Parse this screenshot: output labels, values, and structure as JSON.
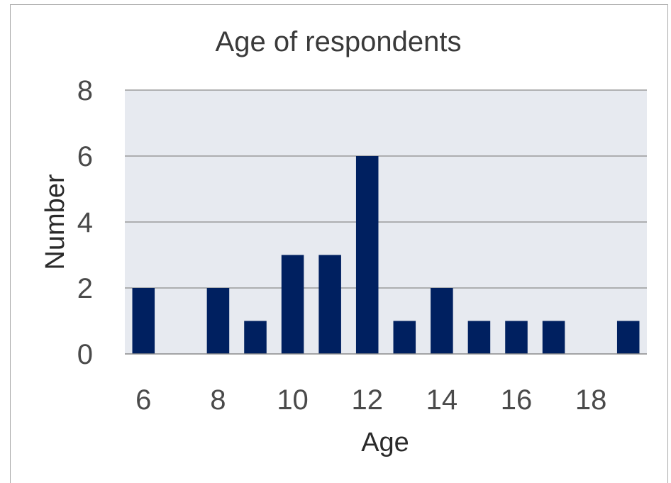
{
  "chart_data": {
    "type": "bar",
    "title": "Age of respondents",
    "xlabel": "Age",
    "ylabel": "Number",
    "xlim": [
      5.5,
      19.5
    ],
    "ylim": [
      0,
      8
    ],
    "x_ticks": [
      "6",
      "8",
      "10",
      "12",
      "14",
      "16",
      "18"
    ],
    "y_ticks": [
      "0",
      "2",
      "4",
      "6",
      "8"
    ],
    "grid": true,
    "legend": "none",
    "categories": [
      6,
      7,
      8,
      9,
      10,
      11,
      12,
      13,
      14,
      15,
      16,
      17,
      18,
      19
    ],
    "values": [
      2,
      0,
      2,
      1,
      3,
      3,
      6,
      1,
      2,
      1,
      1,
      1,
      0,
      1
    ],
    "colors": {
      "bar": "#002060",
      "plot_background": "#e7eaf0",
      "grid": "#8a8a8a"
    }
  }
}
